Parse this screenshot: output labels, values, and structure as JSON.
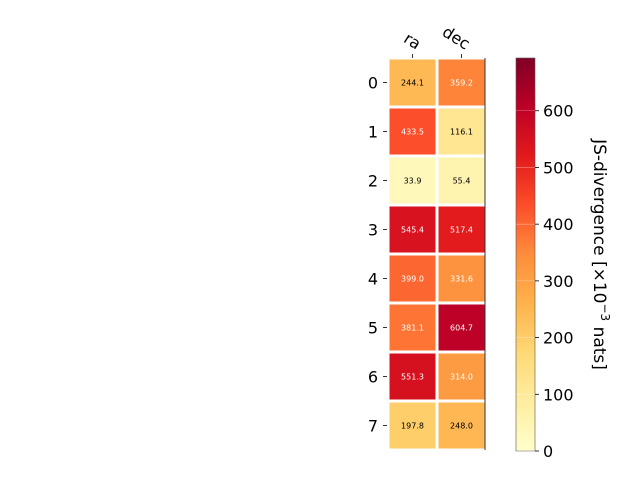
{
  "chart_data": {
    "type": "heatmap",
    "columns": [
      "ra",
      "dec"
    ],
    "rows": [
      "0",
      "1",
      "2",
      "3",
      "4",
      "5",
      "6",
      "7"
    ],
    "values": [
      [
        244.1,
        359.2
      ],
      [
        433.5,
        116.1
      ],
      [
        33.9,
        55.4
      ],
      [
        545.4,
        517.4
      ],
      [
        399.0,
        331.6
      ],
      [
        381.1,
        604.7
      ],
      [
        551.3,
        314.0
      ],
      [
        197.8,
        248.0
      ]
    ],
    "value_labels": [
      [
        "244.1",
        "359.2"
      ],
      [
        "433.5",
        "116.1"
      ],
      [
        "33.9",
        "55.4"
      ],
      [
        "545.4",
        "517.4"
      ],
      [
        "399.0",
        "331.6"
      ],
      [
        "381.1",
        "604.7"
      ],
      [
        "551.3",
        "314.0"
      ],
      [
        "197.8",
        "248.0"
      ]
    ],
    "colormap": "YlOrRd",
    "colorbar": {
      "label_main": "JS-divergence [×10",
      "label_exponent": "−3",
      "label_unit": " nats]",
      "range": [
        0,
        693
      ],
      "ticks": [
        0,
        100,
        200,
        300,
        400,
        500,
        600
      ],
      "tick_labels": [
        "0",
        "100",
        "200",
        "300",
        "400",
        "500",
        "600"
      ]
    }
  }
}
